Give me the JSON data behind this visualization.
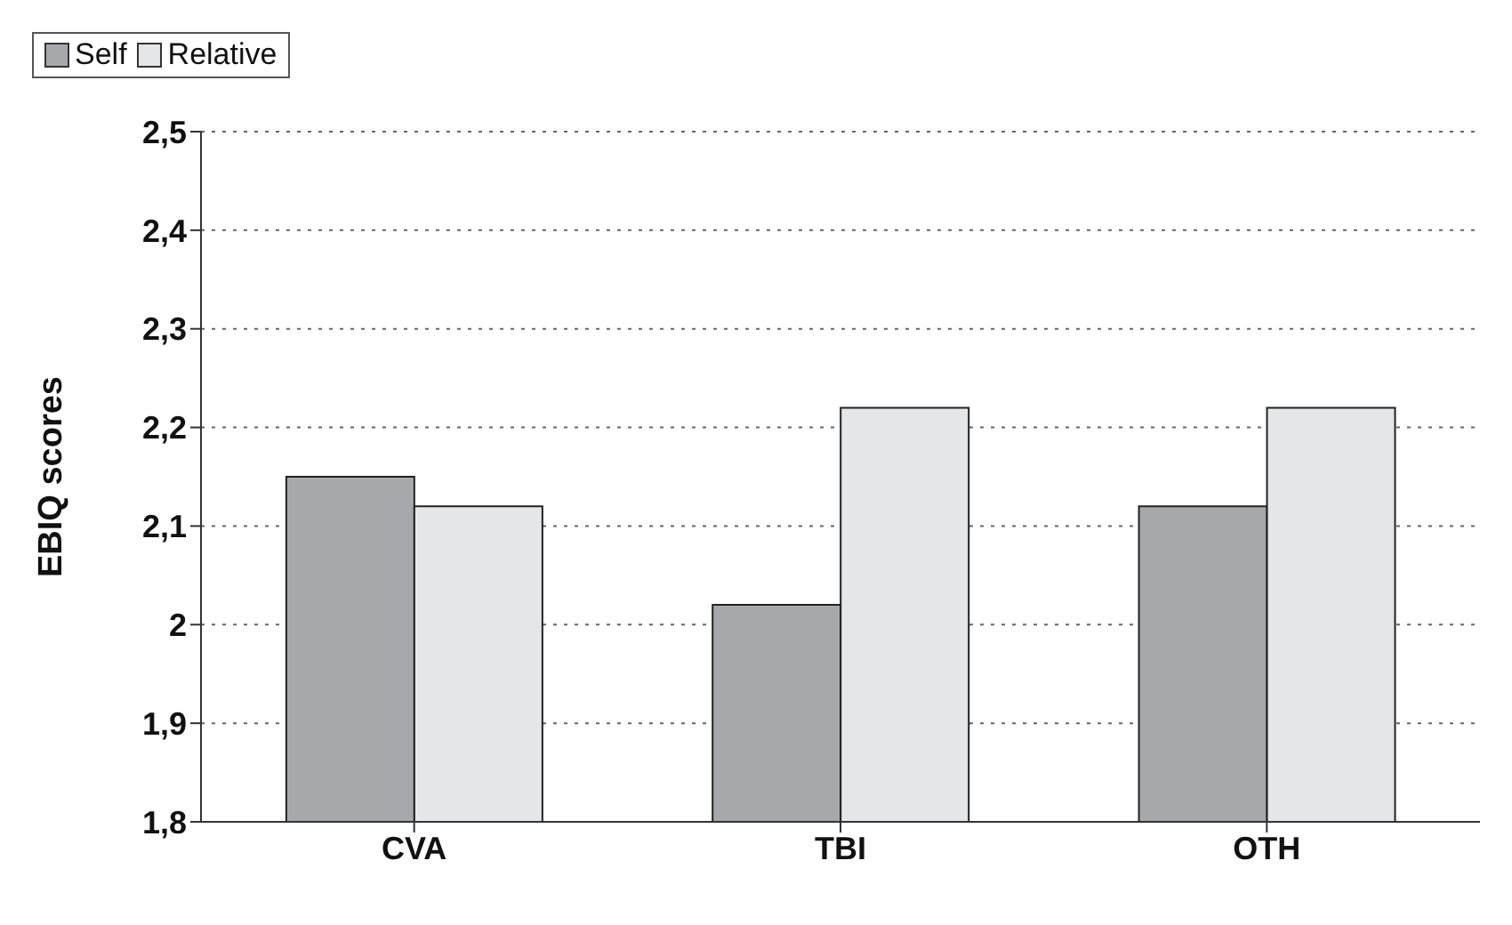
{
  "chart_data": {
    "type": "bar",
    "ylabel": "EBIQ scores",
    "categories": [
      "CVA",
      "TBI",
      "OTH"
    ],
    "series": [
      {
        "name": "Self",
        "color": "#a7a8ab",
        "values": [
          2.15,
          2.02,
          2.12
        ]
      },
      {
        "name": "Relative",
        "color": "#e5e6e8",
        "values": [
          2.12,
          2.22,
          2.22
        ]
      }
    ],
    "ylim": [
      1.8,
      2.5
    ],
    "yticks": [
      {
        "value": 1.8,
        "label": "1,8"
      },
      {
        "value": 1.9,
        "label": "1,9"
      },
      {
        "value": 2,
        "label": "2"
      },
      {
        "value": 2.1,
        "label": "2,1"
      },
      {
        "value": 2.2,
        "label": "2,2"
      },
      {
        "value": 2.3,
        "label": "2,3"
      },
      {
        "value": 2.4,
        "label": "2,4"
      },
      {
        "value": 2.5,
        "label": "2,5"
      }
    ],
    "grid": "y",
    "legend": "top"
  }
}
